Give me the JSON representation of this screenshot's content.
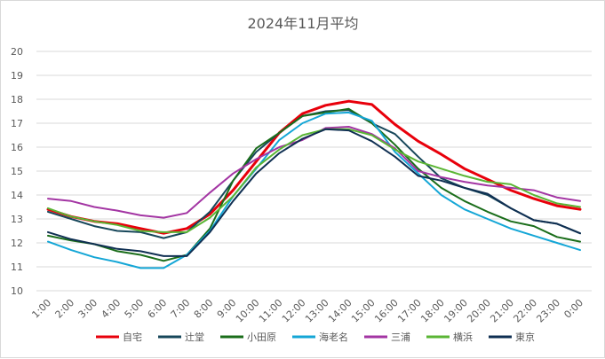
{
  "chart_data": {
    "type": "line",
    "title": "2024年11月平均",
    "xlabel": "",
    "ylabel": "",
    "ylim": [
      10,
      20
    ],
    "yticks": [
      "10",
      "11",
      "12",
      "13",
      "14",
      "15",
      "16",
      "17",
      "18",
      "19",
      "20"
    ],
    "grid": true,
    "legend_position": "bottom",
    "categories": [
      "1:00",
      "2:00",
      "3:00",
      "4:00",
      "5:00",
      "6:00",
      "7:00",
      "8:00",
      "9:00",
      "10:00",
      "11:00",
      "12:00",
      "13:00",
      "14:00",
      "15:00",
      "16:00",
      "17:00",
      "18:00",
      "19:00",
      "20:00",
      "21:00",
      "22:00",
      "23:00",
      "0:00"
    ],
    "series": [
      {
        "name": "自宅",
        "color": "#e8000b",
        "width": 3,
        "values": [
          13.4,
          13.1,
          12.9,
          12.8,
          12.6,
          12.4,
          12.6,
          13.2,
          14.2,
          15.4,
          16.6,
          17.4,
          17.75,
          17.92,
          17.78,
          16.95,
          16.25,
          15.7,
          15.1,
          14.65,
          14.2,
          13.85,
          13.55,
          13.4
        ]
      },
      {
        "name": "辻堂",
        "color": "#17475a",
        "width": 2,
        "values": [
          13.3,
          13.0,
          12.7,
          12.5,
          12.45,
          12.2,
          12.45,
          13.3,
          14.6,
          15.8,
          16.6,
          17.3,
          17.5,
          17.55,
          17.0,
          16.55,
          15.6,
          14.7,
          14.3,
          14.0,
          13.45,
          12.95,
          12.8,
          12.4
        ]
      },
      {
        "name": "小田原",
        "color": "#1a6d1a",
        "width": 2,
        "values": [
          12.3,
          12.1,
          11.95,
          11.65,
          11.5,
          11.25,
          11.5,
          12.6,
          14.6,
          15.95,
          16.6,
          17.3,
          17.45,
          17.6,
          17.0,
          16.1,
          15.1,
          14.3,
          13.75,
          13.3,
          12.9,
          12.7,
          12.25,
          12.05
        ]
      },
      {
        "name": "海老名",
        "color": "#14a6d6",
        "width": 2,
        "values": [
          12.05,
          11.7,
          11.4,
          11.2,
          10.95,
          10.95,
          11.5,
          12.5,
          13.95,
          15.1,
          16.3,
          17.0,
          17.4,
          17.45,
          17.1,
          15.8,
          14.9,
          14.0,
          13.4,
          13.0,
          12.6,
          12.3,
          12.0,
          11.7
        ]
      },
      {
        "name": "三浦",
        "color": "#a335a3",
        "width": 2,
        "values": [
          13.85,
          13.75,
          13.5,
          13.35,
          13.15,
          13.05,
          13.25,
          14.1,
          14.9,
          15.5,
          16.0,
          16.3,
          16.8,
          16.85,
          16.55,
          15.95,
          15.0,
          14.75,
          14.55,
          14.4,
          14.3,
          14.2,
          13.9,
          13.75
        ]
      },
      {
        "name": "横浜",
        "color": "#5ab534",
        "width": 2,
        "values": [
          13.45,
          13.1,
          12.9,
          12.75,
          12.5,
          12.45,
          12.45,
          13.05,
          13.95,
          15.15,
          15.9,
          16.5,
          16.75,
          16.75,
          16.5,
          15.9,
          15.4,
          15.1,
          14.8,
          14.55,
          14.45,
          14.0,
          13.65,
          13.5
        ]
      },
      {
        "name": "東京",
        "color": "#0f2f52",
        "width": 2,
        "values": [
          12.45,
          12.15,
          11.95,
          11.75,
          11.65,
          11.45,
          11.45,
          12.45,
          13.75,
          14.9,
          15.75,
          16.35,
          16.75,
          16.7,
          16.25,
          15.6,
          14.8,
          14.6,
          14.3,
          14.05,
          13.45,
          12.95,
          12.8,
          12.4
        ]
      }
    ]
  }
}
